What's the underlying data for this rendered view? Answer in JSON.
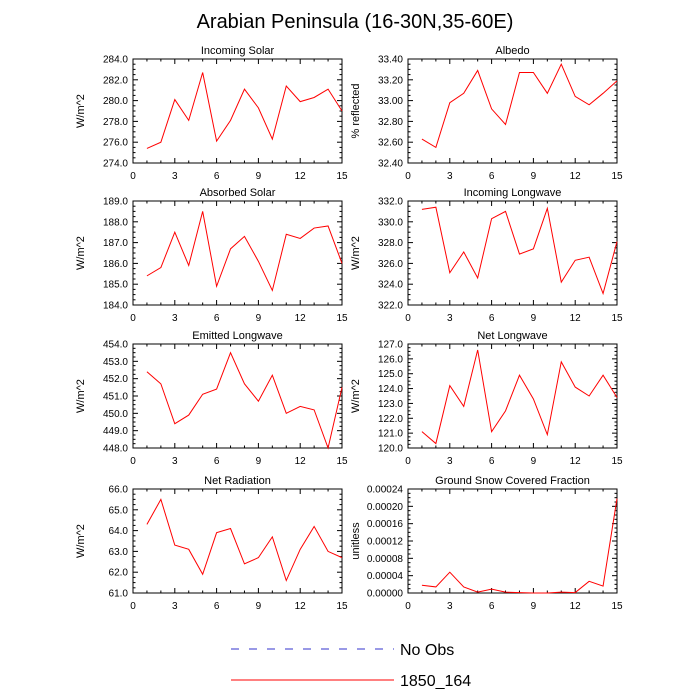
{
  "title": "Arabian Peninsula (16-30N,35-60E)",
  "legend": [
    {
      "label": "No Obs",
      "color": "#3333cc",
      "style": "dashed"
    },
    {
      "label": "1850_164",
      "color": "#ff0000",
      "style": "solid"
    }
  ],
  "chart_data": [
    {
      "type": "line",
      "title": "Incoming Solar",
      "ylabel": "W/m^2",
      "xlim": [
        0,
        15
      ],
      "ylim": [
        274,
        284
      ],
      "xticks": [
        "0",
        "3",
        "6",
        "9",
        "12",
        "15"
      ],
      "yticks": [
        "274.0",
        "276.0",
        "278.0",
        "280.0",
        "282.0",
        "284.0"
      ],
      "series": [
        {
          "name": "1850_164",
          "color": "#ff0000",
          "x": [
            1,
            2,
            3,
            4,
            5,
            6,
            7,
            8,
            9,
            10,
            11,
            12,
            13,
            14,
            15
          ],
          "y": [
            275.4,
            276.0,
            280.1,
            278.1,
            282.7,
            276.1,
            278.1,
            281.1,
            279.3,
            276.3,
            281.4,
            279.9,
            280.3,
            281.1,
            279.0
          ]
        }
      ]
    },
    {
      "type": "line",
      "title": "Albedo",
      "ylabel": "% reflected",
      "xlim": [
        0,
        15
      ],
      "ylim": [
        32.4,
        33.4
      ],
      "xticks": [
        "0",
        "3",
        "6",
        "9",
        "12",
        "15"
      ],
      "yticks": [
        "32.40",
        "32.60",
        "32.80",
        "33.00",
        "33.20",
        "33.40"
      ],
      "series": [
        {
          "name": "1850_164",
          "color": "#ff0000",
          "x": [
            1,
            2,
            3,
            4,
            5,
            6,
            7,
            8,
            9,
            10,
            11,
            12,
            13,
            14,
            15
          ],
          "y": [
            32.63,
            32.55,
            32.98,
            33.07,
            33.29,
            32.92,
            32.77,
            33.27,
            33.27,
            33.07,
            33.35,
            33.04,
            32.96,
            33.07,
            33.19
          ]
        }
      ]
    },
    {
      "type": "line",
      "title": "Absorbed Solar",
      "ylabel": "W/m^2",
      "xlim": [
        0,
        15
      ],
      "ylim": [
        184,
        189
      ],
      "xticks": [
        "0",
        "3",
        "6",
        "9",
        "12",
        "15"
      ],
      "yticks": [
        "184.0",
        "185.0",
        "186.0",
        "187.0",
        "188.0",
        "189.0"
      ],
      "series": [
        {
          "name": "1850_164",
          "color": "#ff0000",
          "x": [
            1,
            2,
            3,
            4,
            5,
            6,
            7,
            8,
            9,
            10,
            11,
            12,
            13,
            14,
            15
          ],
          "y": [
            185.4,
            185.8,
            187.5,
            185.9,
            188.5,
            184.9,
            186.7,
            187.3,
            186.1,
            184.7,
            187.4,
            187.2,
            187.7,
            187.8,
            186.0
          ]
        }
      ]
    },
    {
      "type": "line",
      "title": "Incoming Longwave",
      "ylabel": "W/m^2",
      "xlim": [
        0,
        15
      ],
      "ylim": [
        322,
        332
      ],
      "xticks": [
        "0",
        "3",
        "6",
        "9",
        "12",
        "15"
      ],
      "yticks": [
        "322.0",
        "324.0",
        "326.0",
        "328.0",
        "330.0",
        "332.0"
      ],
      "series": [
        {
          "name": "1850_164",
          "color": "#ff0000",
          "x": [
            1,
            2,
            3,
            4,
            5,
            6,
            7,
            8,
            9,
            10,
            11,
            12,
            13,
            14,
            15
          ],
          "y": [
            331.2,
            331.4,
            325.1,
            327.1,
            324.6,
            330.3,
            331.0,
            326.9,
            327.4,
            331.3,
            324.2,
            326.3,
            326.6,
            323.1,
            328.1
          ]
        }
      ]
    },
    {
      "type": "line",
      "title": "Emitted Longwave",
      "ylabel": "W/m^2",
      "xlim": [
        0,
        15
      ],
      "ylim": [
        448,
        454
      ],
      "xticks": [
        "0",
        "3",
        "6",
        "9",
        "12",
        "15"
      ],
      "yticks": [
        "448.0",
        "449.0",
        "450.0",
        "451.0",
        "452.0",
        "453.0",
        "454.0"
      ],
      "series": [
        {
          "name": "1850_164",
          "color": "#ff0000",
          "x": [
            1,
            2,
            3,
            4,
            5,
            6,
            7,
            8,
            9,
            10,
            11,
            12,
            13,
            14,
            15
          ],
          "y": [
            452.4,
            451.7,
            449.4,
            449.9,
            451.1,
            451.4,
            453.5,
            451.7,
            450.7,
            452.2,
            450.0,
            450.4,
            450.2,
            448.0,
            451.5
          ]
        }
      ]
    },
    {
      "type": "line",
      "title": "Net Longwave",
      "ylabel": "W/m^2",
      "xlim": [
        0,
        15
      ],
      "ylim": [
        120,
        127
      ],
      "xticks": [
        "0",
        "3",
        "6",
        "9",
        "12",
        "15"
      ],
      "yticks": [
        "120.0",
        "121.0",
        "122.0",
        "123.0",
        "124.0",
        "125.0",
        "126.0",
        "127.0"
      ],
      "series": [
        {
          "name": "1850_164",
          "color": "#ff0000",
          "x": [
            1,
            2,
            3,
            4,
            5,
            6,
            7,
            8,
            9,
            10,
            11,
            12,
            13,
            14,
            15
          ],
          "y": [
            121.1,
            120.3,
            124.2,
            122.8,
            126.6,
            121.1,
            122.5,
            124.9,
            123.3,
            120.9,
            125.8,
            124.1,
            123.5,
            124.9,
            123.4
          ]
        }
      ]
    },
    {
      "type": "line",
      "title": "Net Radiation",
      "ylabel": "W/m^2",
      "xlim": [
        0,
        15
      ],
      "ylim": [
        61,
        66
      ],
      "xticks": [
        "0",
        "3",
        "6",
        "9",
        "12",
        "15"
      ],
      "yticks": [
        "61.0",
        "62.0",
        "63.0",
        "64.0",
        "65.0",
        "66.0"
      ],
      "series": [
        {
          "name": "1850_164",
          "color": "#ff0000",
          "x": [
            1,
            2,
            3,
            4,
            5,
            6,
            7,
            8,
            9,
            10,
            11,
            12,
            13,
            14,
            15
          ],
          "y": [
            64.3,
            65.5,
            63.3,
            63.1,
            61.9,
            63.9,
            64.1,
            62.4,
            62.7,
            63.7,
            61.6,
            63.1,
            64.2,
            63.0,
            62.7
          ]
        }
      ]
    },
    {
      "type": "line",
      "title": "Ground Snow Covered Fraction",
      "ylabel": "unitless",
      "xlim": [
        0,
        15
      ],
      "ylim": [
        0,
        0.00024
      ],
      "xticks": [
        "0",
        "3",
        "6",
        "9",
        "12",
        "15"
      ],
      "yticks": [
        "0.00000",
        "0.00004",
        "0.00008",
        "0.00012",
        "0.00016",
        "0.00020",
        "0.00024"
      ],
      "series": [
        {
          "name": "1850_164",
          "color": "#ff0000",
          "x": [
            1,
            2,
            3,
            4,
            5,
            6,
            7,
            8,
            9,
            10,
            11,
            12,
            13,
            14,
            15
          ],
          "y": [
            1.8e-05,
            1.4e-05,
            4.8e-05,
            1.4e-05,
            2e-06,
            9e-06,
            2e-06,
            1e-06,
            0.0,
            0.0,
            2e-06,
            1e-06,
            2.7e-05,
            1.6e-05,
            0.000218
          ]
        }
      ]
    }
  ]
}
